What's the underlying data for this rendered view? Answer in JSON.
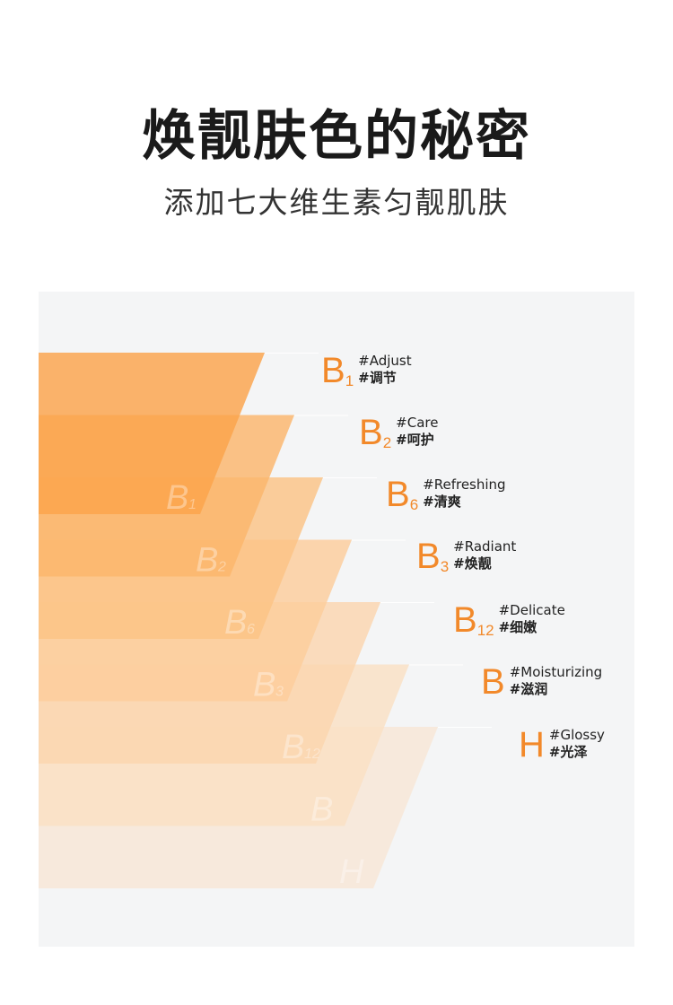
{
  "title": "焕靓肤色的秘密",
  "subtitle": "添加七大维生素匀靓肌肤",
  "colors": {
    "accent": "#f2892a",
    "panel_bg": "#f4f5f6",
    "band_colors": [
      "#fba34a",
      "#fbb66b",
      "#fbc385",
      "#fccd9b",
      "#fbd6ae",
      "#fae0c3",
      "#f8e6d6"
    ]
  },
  "vitamins": [
    {
      "letter": "B",
      "sub": "1",
      "tag_en": "#Adjust",
      "tag_zh": "#调节"
    },
    {
      "letter": "B",
      "sub": "2",
      "tag_en": "#Care",
      "tag_zh": "#呵护"
    },
    {
      "letter": "B",
      "sub": "6",
      "tag_en": "#Refreshing",
      "tag_zh": "#清爽"
    },
    {
      "letter": "B",
      "sub": "3",
      "tag_en": "#Radiant",
      "tag_zh": "#焕靓"
    },
    {
      "letter": "B",
      "sub": "12",
      "tag_en": "#Delicate",
      "tag_zh": "#细嫩"
    },
    {
      "letter": "B",
      "sub": "",
      "tag_en": "#Moisturizing",
      "tag_zh": "#滋润"
    },
    {
      "letter": "H",
      "sub": "",
      "tag_en": "#Glossy",
      "tag_zh": "#光泽"
    }
  ]
}
